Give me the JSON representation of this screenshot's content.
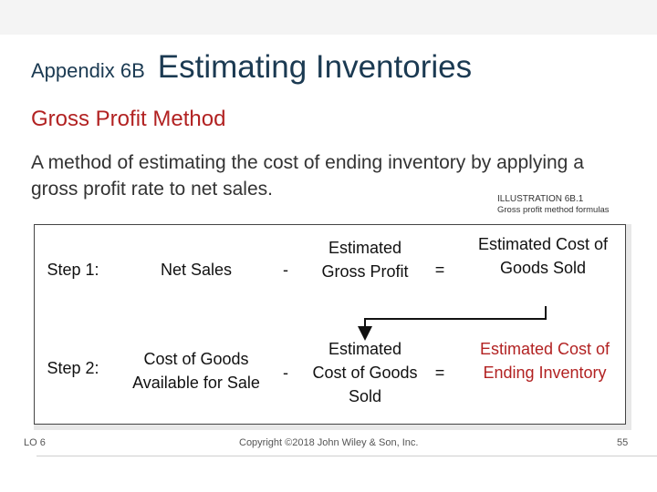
{
  "header": {
    "prefix": "Appendix 6B",
    "title": "Estimating Inventories"
  },
  "subtitle": "Gross Profit Method",
  "description": "A method of estimating the cost of ending inventory by applying a gross profit rate to net sales.",
  "illustration": {
    "label": "ILLUSTRATION 6B.1",
    "caption": "Gross profit method formulas"
  },
  "steps": [
    {
      "label": "Step 1:",
      "term1": "Net Sales",
      "op1": "-",
      "term2": "Estimated Gross Profit",
      "op2": "=",
      "result": "Estimated Cost of Goods Sold"
    },
    {
      "label": "Step 2:",
      "term1": "Cost of Goods Available for Sale",
      "op1": "-",
      "term2": "Estimated Cost of Goods Sold",
      "op2": "=",
      "result": "Estimated Cost of Ending Inventory"
    }
  ],
  "footer": {
    "lo": "LO 6",
    "copyright": "Copyright ©2018 John Wiley & Son, Inc.",
    "page": "55"
  },
  "colors": {
    "title": "#1b3a52",
    "accent_red": "#b22222"
  }
}
